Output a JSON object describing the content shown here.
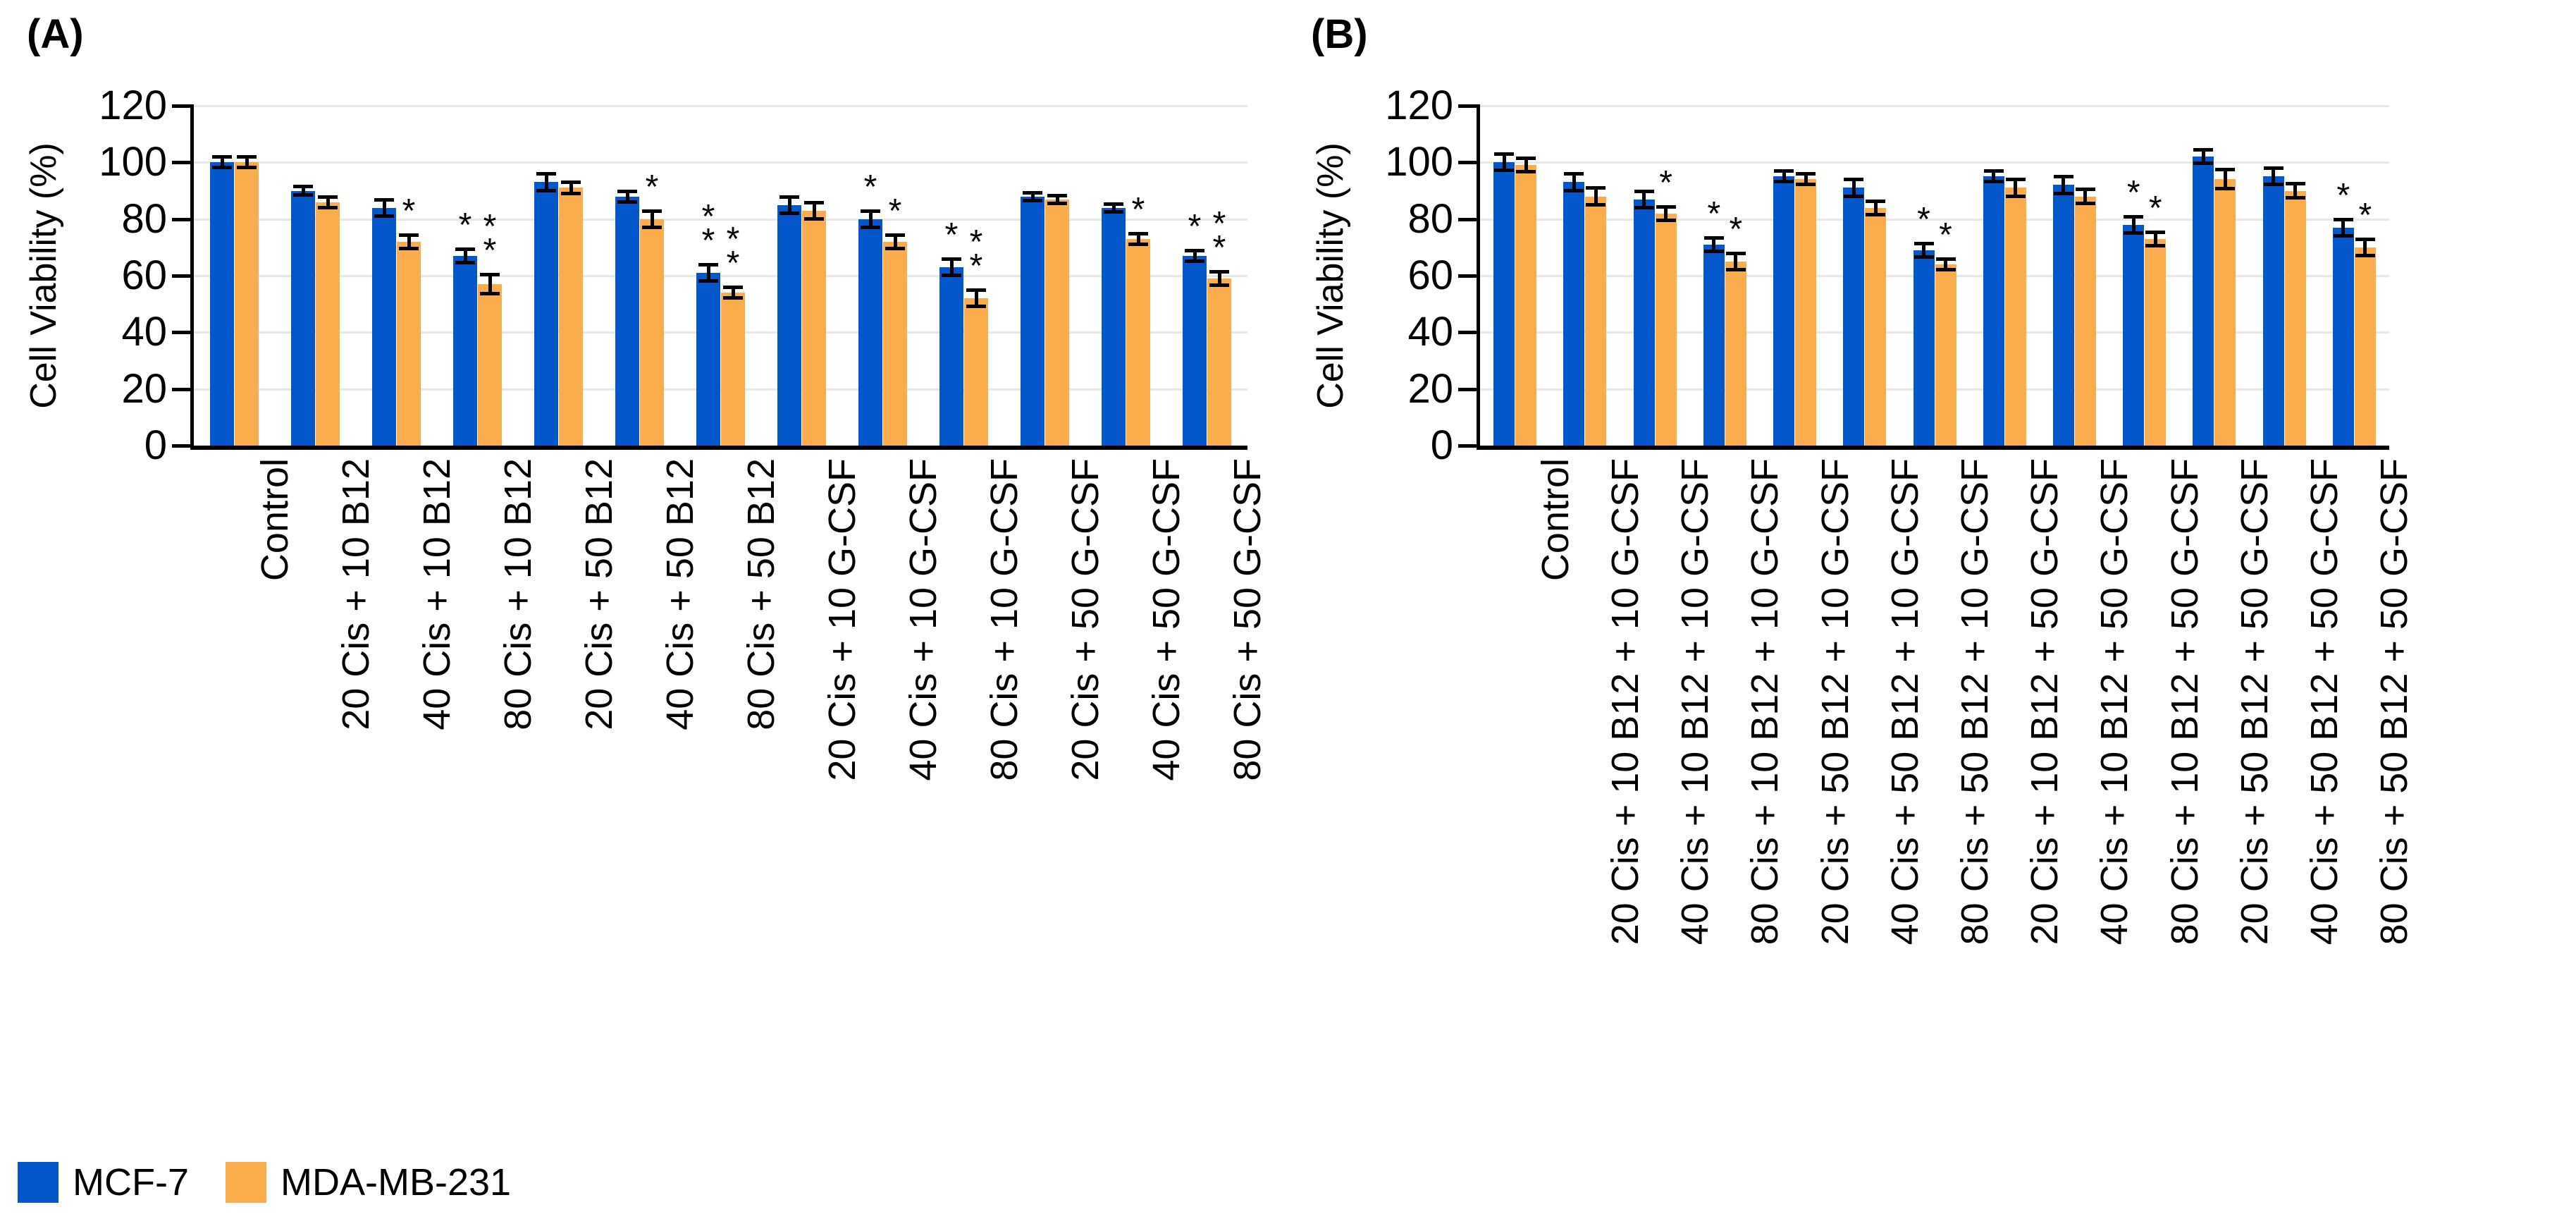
{
  "legend": {
    "items": [
      {
        "label": "MCF-7",
        "color": "#0456CB"
      },
      {
        "label": "MDA-MB-231",
        "color": "#FBAD4D"
      }
    ]
  },
  "chart_data": [
    {
      "type": "bar",
      "panel_label": "(A)",
      "title": "",
      "xlabel": "",
      "ylabel": "Cell Viability (%)",
      "ylim": [
        0,
        120
      ],
      "yticks": [
        0,
        20,
        40,
        60,
        80,
        100,
        120
      ],
      "grid": true,
      "legend_position": "bottom-left",
      "error_bars": true,
      "categories": [
        "Control",
        "20 Cis + 10 B12",
        "40 Cis + 10 B12",
        "80 Cis + 10 B12",
        "20 Cis + 50 B12",
        "40 Cis + 50 B12",
        "80 Cis + 50 B12",
        "20 Cis + 10 G-CSF",
        "40 Cis + 10 G-CSF",
        "80 Cis + 10 G-CSF",
        "20 Cis + 50 G-CSF",
        "40 Cis + 50 G-CSF",
        "80 Cis + 50 G-CSF"
      ],
      "series": [
        {
          "name": "MCF-7",
          "color": "#0456CB",
          "values": [
            100,
            90,
            84,
            67,
            93,
            88,
            61,
            85,
            80,
            63,
            88,
            84,
            67
          ],
          "errors": [
            2,
            1.5,
            3,
            2.5,
            3,
            2,
            3,
            3,
            3,
            3,
            1.5,
            1.5,
            2
          ],
          "significance": [
            "",
            "",
            "",
            "*",
            "",
            "",
            "**",
            "",
            "*",
            "*",
            "",
            "",
            "*"
          ]
        },
        {
          "name": "MDA-MB-231",
          "color": "#FBAD4D",
          "values": [
            100,
            86,
            72,
            57,
            91,
            80,
            54,
            83,
            72,
            52,
            87,
            73,
            59
          ],
          "errors": [
            2,
            2,
            2.5,
            3.5,
            2,
            3,
            2,
            3,
            2.5,
            3,
            1.5,
            2,
            2.5
          ],
          "significance": [
            "",
            "",
            "*",
            "**",
            "",
            "*",
            "**",
            "",
            "*",
            "**",
            "",
            "*",
            "**"
          ]
        }
      ]
    },
    {
      "type": "bar",
      "panel_label": "(B)",
      "title": "",
      "xlabel": "",
      "ylabel": "Cell Viability (%)",
      "ylim": [
        0,
        120
      ],
      "yticks": [
        0,
        20,
        40,
        60,
        80,
        100,
        120
      ],
      "grid": true,
      "legend_position": "bottom-left",
      "error_bars": true,
      "categories": [
        "Control",
        "20 Cis + 10 B12 + 10 G-CSF",
        "40 Cis + 10 B12 + 10 G-CSF",
        "80 Cis + 10 B12 + 10 G-CSF",
        "20 Cis + 50 B12 + 10 G-CSF",
        "40 Cis + 50 B12 + 10 G-CSF",
        "80 Cis + 50 B12 + 10 G-CSF",
        "20 Cis + 10 B12 + 50 G-CSF",
        "40 Cis + 10 B12 + 50 G-CSF",
        "80 Cis + 10 B12 + 50 G-CSF",
        "20 Cis + 50 B12 + 50 G-CSF",
        "40 Cis + 50 B12 + 50 G-CSF",
        "80 Cis + 50 B12 + 50 G-CSF"
      ],
      "series": [
        {
          "name": "MCF-7",
          "color": "#0456CB",
          "values": [
            100,
            93,
            87,
            71,
            95,
            91,
            69,
            95,
            92,
            78,
            102,
            95,
            77
          ],
          "errors": [
            3,
            3,
            3,
            2.5,
            2,
            3,
            2.5,
            2,
            3,
            3,
            2.5,
            3,
            3
          ],
          "significance": [
            "",
            "",
            "",
            "*",
            "",
            "",
            "*",
            "",
            "",
            "*",
            "",
            "",
            "*"
          ]
        },
        {
          "name": "MDA-MB-231",
          "color": "#FBAD4D",
          "values": [
            99,
            88,
            82,
            65,
            94,
            84,
            64,
            91,
            88,
            73,
            94,
            90,
            70
          ],
          "errors": [
            2.5,
            3,
            2.5,
            3,
            2,
            2.5,
            2,
            3,
            2.5,
            2.5,
            3.5,
            2.5,
            3
          ],
          "significance": [
            "",
            "",
            "*",
            "*",
            "",
            "",
            "*",
            "",
            "",
            "*",
            "",
            "",
            "*"
          ]
        }
      ]
    }
  ]
}
